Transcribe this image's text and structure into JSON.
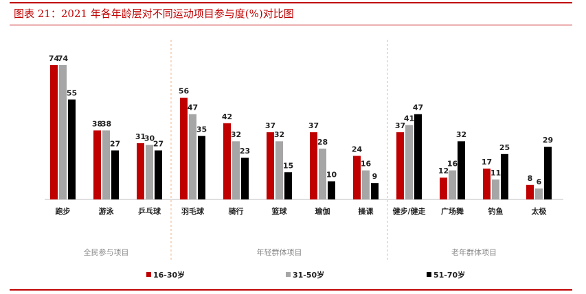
{
  "title": "图表 21：2021 年各年龄层对不同运动项目参与度(%)对比图",
  "colors": {
    "accent": "#c00000",
    "series": [
      "#c00000",
      "#a6a6a6",
      "#000000"
    ],
    "separator": "#f4b183",
    "axis": "#bfbfbf"
  },
  "chart_data": {
    "type": "bar",
    "title": "图表 21：2021 年各年龄层对不同运动项目参与度(%)对比图",
    "categories": [
      "跑步",
      "游泳",
      "乒乓球",
      "羽毛球",
      "骑行",
      "篮球",
      "瑜伽",
      "操课",
      "健步/健走",
      "广场舞",
      "钓鱼",
      "太极"
    ],
    "groups": [
      {
        "label": "全民参与项目",
        "categories": [
          "跑步",
          "游泳",
          "乒乓球"
        ]
      },
      {
        "label": "年轻群体项目",
        "categories": [
          "羽毛球",
          "骑行",
          "篮球",
          "瑜伽",
          "操课"
        ]
      },
      {
        "label": "老年群体项目",
        "categories": [
          "健步/健走",
          "广场舞",
          "钓鱼",
          "太极"
        ]
      }
    ],
    "series": [
      {
        "name": "16-30岁",
        "values": [
          74,
          38,
          31,
          56,
          42,
          37,
          37,
          24,
          37,
          12,
          17,
          8
        ]
      },
      {
        "name": "31-50岁",
        "values": [
          74,
          38,
          30,
          47,
          32,
          32,
          28,
          16,
          41,
          16,
          11,
          6
        ]
      },
      {
        "name": "51-70岁",
        "values": [
          55,
          27,
          27,
          35,
          23,
          15,
          10,
          9,
          47,
          32,
          25,
          29
        ]
      }
    ],
    "ylim": [
      0,
      74
    ],
    "xlabel": "",
    "ylabel": "",
    "grid": false,
    "legend_position": "bottom"
  }
}
